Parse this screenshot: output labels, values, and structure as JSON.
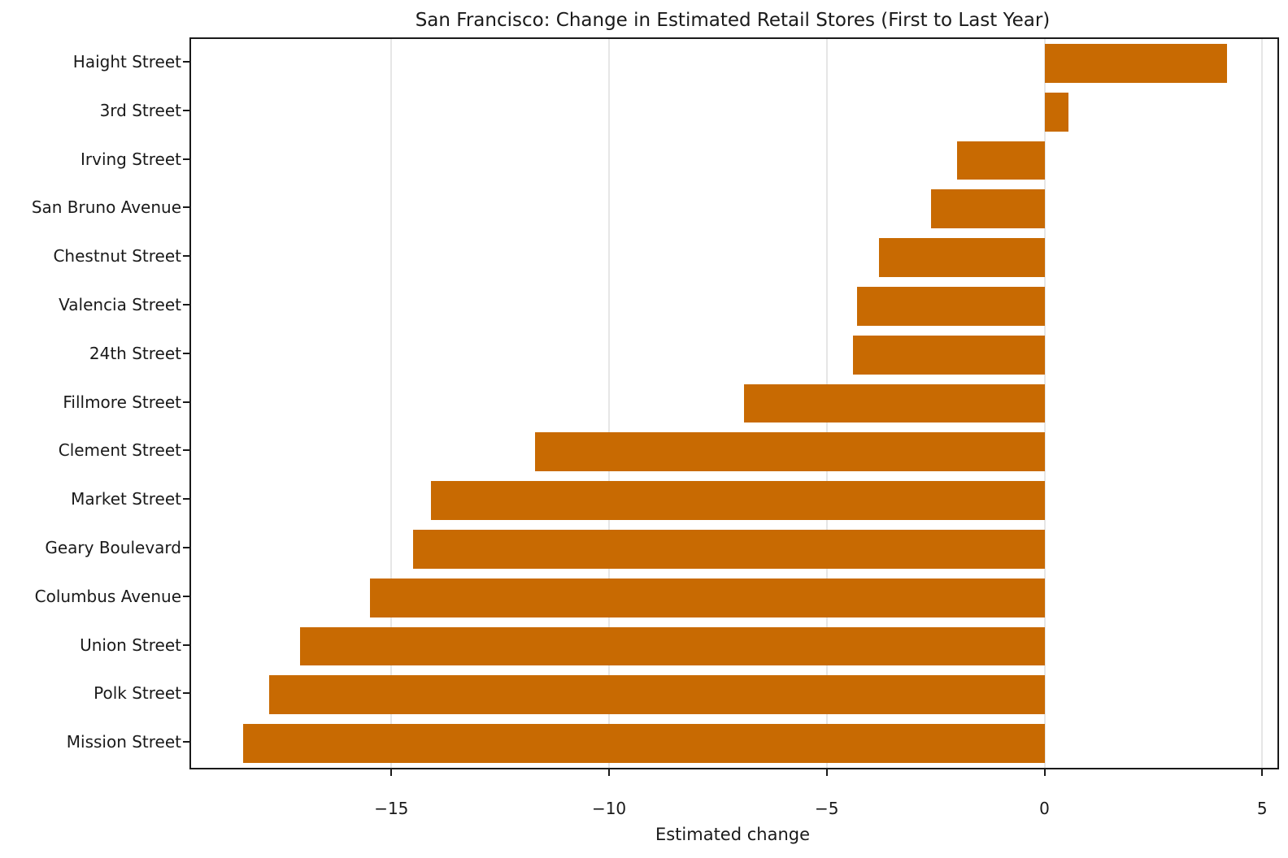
{
  "chart_data": {
    "type": "bar",
    "orientation": "horizontal",
    "title": "San Francisco: Change in Estimated Retail Stores (First to Last Year)",
    "xlabel": "Estimated change",
    "ylabel": "",
    "categories": [
      "Haight Street",
      "3rd Street",
      "Irving Street",
      "San Bruno Avenue",
      "Chestnut Street",
      "Valencia Street",
      "24th Street",
      "Fillmore Street",
      "Clement Street",
      "Market Street",
      "Geary Boulevard",
      "Columbus Avenue",
      "Union Street",
      "Polk Street",
      "Mission Street"
    ],
    "values": [
      4.2,
      0.55,
      -2.0,
      -2.6,
      -3.8,
      -4.3,
      -4.4,
      -6.9,
      -11.7,
      -14.1,
      -14.5,
      -15.5,
      -17.1,
      -17.8,
      -18.4
    ],
    "xlim": [
      -19.6,
      5.35
    ],
    "xticks": [
      -15,
      -10,
      -5,
      0,
      5
    ],
    "xtick_labels": [
      "−15",
      "−10",
      "−5",
      "0",
      "5"
    ],
    "bar_height_fraction": 0.8,
    "grid": "vertical",
    "legend": "none",
    "colors": {
      "bar": "#c86a02",
      "gridline": "#e6e6e6",
      "spine": "#1a1a1a",
      "text": "#1a1a1a"
    }
  }
}
